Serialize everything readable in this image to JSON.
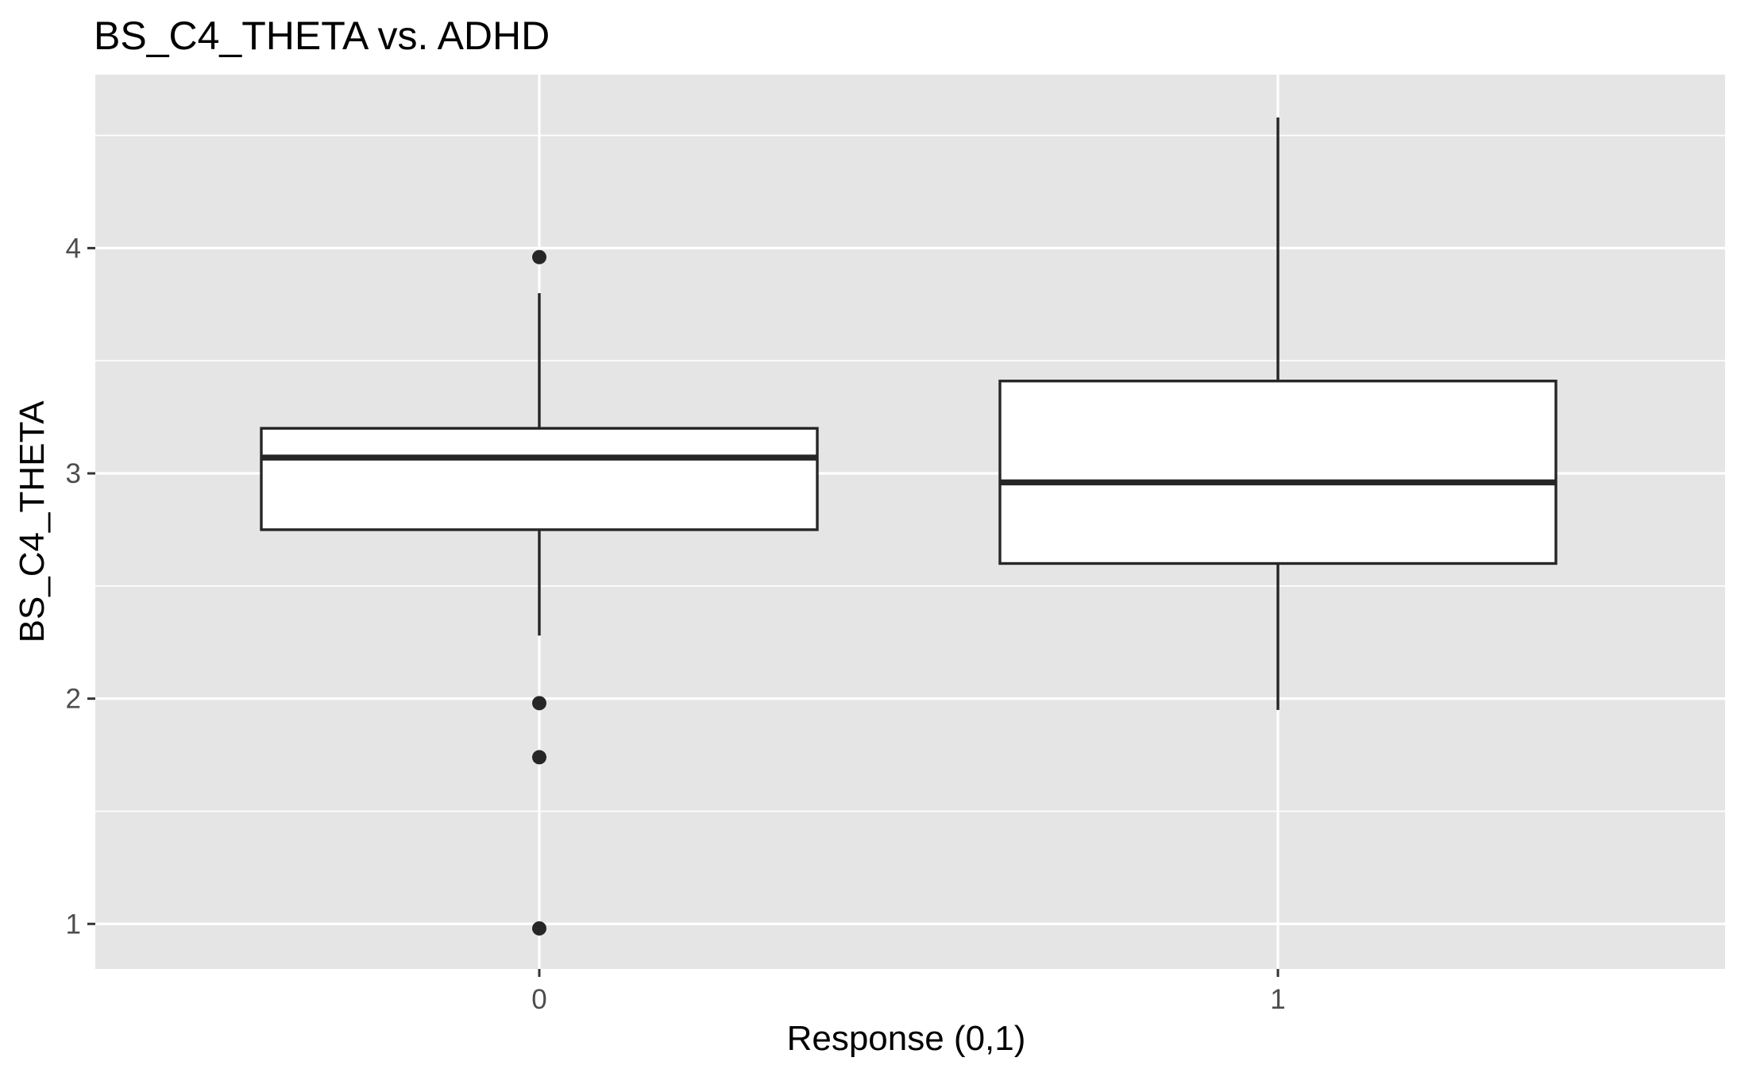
{
  "chart_data": {
    "type": "boxplot",
    "title": "BS_C4_THETA vs. ADHD",
    "xlabel": "Response (0,1)",
    "ylabel": "BS_C4_THETA",
    "categories": [
      "0",
      "1"
    ],
    "y_ticks": [
      1,
      2,
      3,
      4
    ],
    "y_tick_labels": [
      "1",
      "2",
      "3",
      "4"
    ],
    "ylim": [
      0.8,
      4.77
    ],
    "grid": true,
    "boxes": [
      {
        "category": "0",
        "whisker_low": 2.28,
        "q1": 2.75,
        "median": 3.07,
        "q3": 3.2,
        "whisker_high": 3.8,
        "outliers": [
          3.96,
          1.98,
          1.74,
          0.98
        ]
      },
      {
        "category": "1",
        "whisker_low": 1.95,
        "q1": 2.6,
        "median": 2.96,
        "q3": 3.41,
        "whisker_high": 4.58,
        "outliers": []
      }
    ],
    "colors": {
      "panel_background": "#e5e5e5",
      "grid_line": "#ffffff",
      "box_fill": "#ffffff",
      "box_stroke": "#262626",
      "outlier": "#262626",
      "tick_label": "#4d4d4d",
      "tick_mark": "#333333",
      "title": "#000000"
    }
  }
}
